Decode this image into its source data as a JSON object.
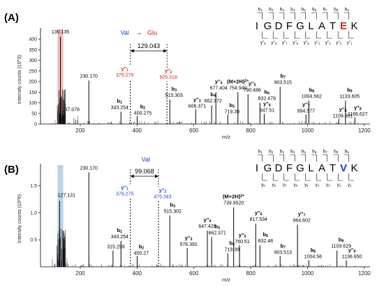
{
  "chart_data": [
    {
      "type": "bar",
      "panel_label": "(A)",
      "ylabel": "Intensity counts (10^3)",
      "xlabel": "m/z",
      "xlim": [
        60,
        1220
      ],
      "x_ticks": [
        "200",
        "400",
        "600",
        "800",
        "1000",
        "1200"
      ],
      "y_ticks": [
        "0",
        "50",
        "100",
        "150",
        "200",
        "250",
        "300",
        "350",
        "400"
      ],
      "ylim": [
        0,
        420
      ],
      "highlight_range": [
        120,
        140
      ],
      "highlight_color": "#f4b8b8",
      "mutation": {
        "from": "Val",
        "arrow": "→",
        "to": "Glu",
        "from_color": "#1a3fd6",
        "to_color": "#e0201b"
      },
      "delta_mass": "129.043",
      "sequence": {
        "residues": [
          "I",
          "G",
          "D",
          "F",
          "G",
          "L",
          "A",
          "T",
          "E",
          "K"
        ],
        "highlight_index": 8,
        "highlight_color": "#e0201b",
        "b_labels": [
          "b1",
          "b2",
          "b3",
          "b4",
          "b5",
          "b6",
          "b7",
          "b8",
          "b9"
        ],
        "y_labels": [
          "y''9",
          "y''8",
          "y''7",
          "y''6",
          "y''5",
          "y''4",
          "y''3",
          "y''2",
          "y''1"
        ]
      },
      "peaks": [
        {
          "mz": 130.135,
          "intensity": 410,
          "label": "130.135",
          "ion": ""
        },
        {
          "mz": 147.076,
          "intensity": 48,
          "label": "147.076",
          "ion": ""
        },
        {
          "mz": 230.17,
          "intensity": 205,
          "label": "230.170",
          "ion": ""
        },
        {
          "mz": 343.254,
          "intensity": 58,
          "label": "343.254",
          "ion": "b1"
        },
        {
          "mz": 376.275,
          "intensity": 210,
          "label": "376.275",
          "ion": "y''1",
          "color": "#e0201b"
        },
        {
          "mz": 400.275,
          "intensity": 38,
          "label": "400.275",
          "ion": "b2"
        },
        {
          "mz": 505.318,
          "intensity": 200,
          "label": "505.318",
          "ion": "y''2",
          "color": "#e0201b"
        },
        {
          "mz": 515.303,
          "intensity": 115,
          "label": "515.303",
          "ion": "b3"
        },
        {
          "mz": 606.371,
          "intensity": 70,
          "label": "606.371",
          "ion": "y''3"
        },
        {
          "mz": 662.372,
          "intensity": 88,
          "label": "662.372",
          "ion": "b4"
        },
        {
          "mz": 677.404,
          "intensity": 150,
          "label": "677.404",
          "ion": "y''4"
        },
        {
          "mz": 719.39,
          "intensity": 45,
          "label": "719.39",
          "ion": "b5"
        },
        {
          "mz": 754.94,
          "intensity": 150,
          "label": "754.940",
          "ion": "(M+2H)2+"
        },
        {
          "mz": 790.486,
          "intensity": 140,
          "label": "790.486",
          "ion": "y''5"
        },
        {
          "mz": 832.478,
          "intensity": 100,
          "label": "832.478",
          "ion": "b6"
        },
        {
          "mz": 847.51,
          "intensity": 48,
          "label": "847.51",
          "ion": "y''6"
        },
        {
          "mz": 903.515,
          "intensity": 175,
          "label": "903.515",
          "ion": "b7"
        },
        {
          "mz": 994.577,
          "intensity": 45,
          "label": "994.577",
          "ion": "y''7"
        },
        {
          "mz": 1004.562,
          "intensity": 110,
          "label": "1004.562",
          "ion": "b8"
        },
        {
          "mz": 1109.601,
          "intensity": 25,
          "label": "1109.601",
          "ion": "y''8"
        },
        {
          "mz": 1133.605,
          "intensity": 110,
          "label": "1133.605",
          "ion": "b9"
        },
        {
          "mz": 1166.627,
          "intensity": 30,
          "label": "1166.627",
          "ion": "y''9"
        }
      ]
    },
    {
      "type": "bar",
      "panel_label": "(B)",
      "ylabel": "Intensity counts (10^6)",
      "xlabel": "m/z",
      "xlim": [
        60,
        1220
      ],
      "x_ticks": [
        "200",
        "400",
        "600",
        "800",
        "1000",
        "1200"
      ],
      "y_ticks": [
        "0.5",
        "1.0",
        "1.5"
      ],
      "ylim": [
        0,
        1.78
      ],
      "highlight_range": [
        120,
        140
      ],
      "highlight_color": "#b9d3ea",
      "mutation": {
        "from": "Val",
        "from_color": "#1a3fd6"
      },
      "delta_mass": "99.068",
      "sequence": {
        "residues": [
          "I",
          "G",
          "D",
          "F",
          "G",
          "L",
          "A",
          "T",
          "V",
          "K"
        ],
        "highlight_index": 8,
        "highlight_color": "#1a3fd6",
        "b_labels": [
          "b1",
          "b2",
          "b3",
          "b4",
          "b5",
          "b6",
          "b7",
          "b8",
          "b9"
        ],
        "y_labels": [
          "y9",
          "y8",
          "y7",
          "y6",
          "y5",
          "y4",
          "y3",
          "y2",
          "y1"
        ]
      },
      "peaks": [
        {
          "mz": 127.131,
          "intensity": 1.22,
          "label": "127.131",
          "ion": ""
        },
        {
          "mz": 230.17,
          "intensity": 1.75,
          "label": "230.170",
          "ion": ""
        },
        {
          "mz": 315.259,
          "intensity": 0.3,
          "label": "315.259",
          "ion": ""
        },
        {
          "mz": 343.254,
          "intensity": 0.48,
          "label": "343.254",
          "ion": "b1"
        },
        {
          "mz": 376.275,
          "intensity": 1.27,
          "label": "376.275",
          "ion": "y''1",
          "color": "#1a3fd6"
        },
        {
          "mz": 400.27,
          "intensity": 0.2,
          "label": "400.27",
          "ion": "b2"
        },
        {
          "mz": 475.343,
          "intensity": 1.22,
          "label": "475.343",
          "ion": "y''2",
          "color": "#1a3fd6"
        },
        {
          "mz": 515.302,
          "intensity": 0.95,
          "label": "515.302",
          "ion": "b3"
        },
        {
          "mz": 576.391,
          "intensity": 0.35,
          "label": "576.391",
          "ion": "y''3"
        },
        {
          "mz": 647.428,
          "intensity": 0.67,
          "label": "647.428",
          "ion": "y''4"
        },
        {
          "mz": 662.371,
          "intensity": 0.55,
          "label": "662.371",
          "ion": "b4"
        },
        {
          "mz": 719.39,
          "intensity": 0.25,
          "label": "719.39",
          "ion": "b5"
        },
        {
          "mz": 739.952,
          "intensity": 1.1,
          "label": "739.9520",
          "ion": "(M+2H)2+"
        },
        {
          "mz": 760.51,
          "intensity": 0.4,
          "label": "760.51",
          "ion": "y''5"
        },
        {
          "mz": 817.534,
          "intensity": 0.8,
          "label": "817.534",
          "ion": "y''6"
        },
        {
          "mz": 832.48,
          "intensity": 0.4,
          "label": "832.48",
          "ion": "b6"
        },
        {
          "mz": 903.513,
          "intensity": 0.2,
          "label": "903.513",
          "ion": "b7"
        },
        {
          "mz": 964.602,
          "intensity": 0.78,
          "label": "964.602",
          "ion": "y''7"
        },
        {
          "mz": 1004.56,
          "intensity": 0.12,
          "label": "1004.56",
          "ion": "b8"
        },
        {
          "mz": 1103.629,
          "intensity": 0.3,
          "label": "1103.629",
          "ion": "b9"
        },
        {
          "mz": 1136.65,
          "intensity": 0.12,
          "label": "1136.650",
          "ion": "y''9"
        }
      ]
    }
  ]
}
